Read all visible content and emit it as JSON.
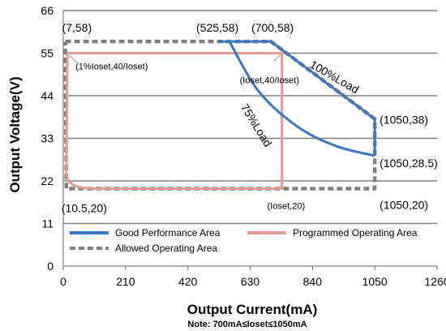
{
  "chart_data": {
    "type": "line",
    "xlabel": "Output Current(mA)",
    "ylabel": "Output Voltage(V)",
    "note": "Note:  700mA≤Ioset≤1050mA",
    "xlim": [
      0,
      1260
    ],
    "ylim": [
      0,
      66
    ],
    "x_ticks": [
      0,
      210,
      420,
      630,
      840,
      1050,
      1260
    ],
    "y_ticks": [
      0,
      11,
      22,
      33,
      44,
      55,
      66
    ],
    "x_tick_labels": [
      "0",
      "210",
      "420",
      "630",
      "840",
      "1050",
      "1260"
    ],
    "y_tick_labels": [
      "0",
      "11",
      "22",
      "33",
      "44",
      "55",
      "66"
    ],
    "grid": "horizontal",
    "legend_placement": "bottom-left",
    "series": [
      {
        "name": "Good Performance Area",
        "color": "#3a78c3",
        "style": "solid",
        "points": [
          [
            525,
            58
          ],
          [
            700,
            58
          ],
          [
            1050,
            38
          ],
          [
            1050,
            28.5
          ]
        ]
      },
      {
        "name": "Good Performance Area",
        "color": "#3a78c3",
        "style": "solid",
        "points": [
          [
            560,
            58
          ],
          [
            660,
            45
          ],
          [
            790,
            36
          ],
          [
            920,
            31
          ],
          [
            1050,
            28.5
          ]
        ]
      },
      {
        "name": "Programmed Operating Area",
        "color": "#e59a92",
        "style": "solid",
        "points": [
          [
            10.5,
            20
          ],
          [
            10.5,
            24
          ],
          [
            12,
            40
          ],
          [
            14,
            55
          ],
          [
            737,
            55
          ],
          [
            737,
            20
          ],
          [
            10.5,
            20
          ]
        ]
      },
      {
        "name": "Allowed Operating Area",
        "color": "#808080",
        "style": "dashed",
        "points": [
          [
            7,
            58
          ],
          [
            525,
            58
          ],
          [
            700,
            58
          ],
          [
            1050,
            38
          ],
          [
            1050,
            28.5
          ],
          [
            1050,
            20
          ],
          [
            10.5,
            20
          ],
          [
            7,
            58
          ]
        ]
      }
    ],
    "point_labels": [
      {
        "text": "(7,58)",
        "x": 7,
        "y": 58
      },
      {
        "text": "(525,58)",
        "x": 525,
        "y": 58
      },
      {
        "text": "(700,58)",
        "x": 700,
        "y": 58
      },
      {
        "text": "(1050,38)",
        "x": 1050,
        "y": 38
      },
      {
        "text": "(1050,28.5)",
        "x": 1050,
        "y": 28.5
      },
      {
        "text": "(1050,20)",
        "x": 1050,
        "y": 20
      },
      {
        "text": "(10.5,20)",
        "x": 10.5,
        "y": 20
      },
      {
        "text": "(Ioset,20)",
        "x": 737,
        "y": 20
      },
      {
        "text": "(Ioset,40/Ioset)",
        "x": 737,
        "y": 55
      },
      {
        "text": "(1%Ioset,40/Ioset)",
        "x": 14,
        "y": 55
      }
    ],
    "curve_labels": [
      {
        "text": "100%Load"
      },
      {
        "text": "75%Load"
      }
    ],
    "legend": [
      {
        "label": "Good Performance Area",
        "color": "#3a78c3",
        "style": "solid"
      },
      {
        "label": "Programmed Operating Area",
        "color": "#e59a92",
        "style": "solid"
      },
      {
        "label": "Allowed Operating Area",
        "color": "#808080",
        "style": "dashed"
      }
    ]
  }
}
